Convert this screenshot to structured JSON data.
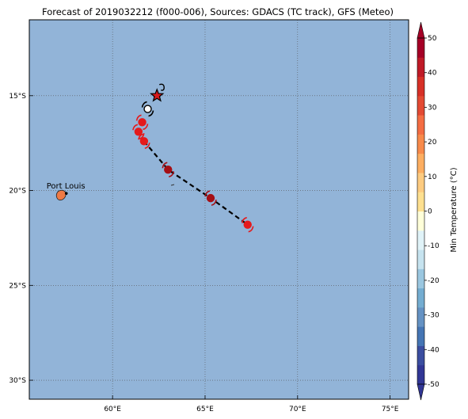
{
  "title": "Forecast of 2019032212 (f000-006), Sources: GDACS (TC track), GFS (Meteo)",
  "map": {
    "ocean_color": "#92b4d8",
    "lon_range": [
      55.5,
      76
    ],
    "lat_range": [
      -31,
      -11
    ],
    "grid": true,
    "lon_ticks": [
      {
        "value": 60,
        "label": "60°E"
      },
      {
        "value": 65,
        "label": "65°E"
      },
      {
        "value": 70,
        "label": "70°E"
      },
      {
        "value": 75,
        "label": "75°E"
      }
    ],
    "lat_ticks": [
      {
        "value": -15,
        "label": "15°S"
      },
      {
        "value": -20,
        "label": "20°S"
      },
      {
        "value": -25,
        "label": "25°S"
      },
      {
        "value": -30,
        "label": "30°S"
      }
    ]
  },
  "city": {
    "name": "Port Louis",
    "lon": 57.5,
    "lat": -20.15
  },
  "track": {
    "line_color": "#000000",
    "points": [
      {
        "lon": 62.4,
        "lat": -15.0,
        "kind": "current"
      },
      {
        "lon": 61.9,
        "lat": -15.7,
        "kind": "past"
      },
      {
        "lon": 61.6,
        "lat": -16.4,
        "kind": "past",
        "color": "#e41a1c"
      },
      {
        "lon": 61.4,
        "lat": -16.9,
        "kind": "past",
        "color": "#e41a1c"
      },
      {
        "lon": 61.7,
        "lat": -17.4,
        "kind": "past",
        "color": "#e41a1c"
      },
      {
        "lon": 63.0,
        "lat": -18.9,
        "kind": "forecast",
        "color": "#a50f15"
      },
      {
        "lon": 65.3,
        "lat": -20.4,
        "kind": "forecast",
        "color": "#a50f15"
      },
      {
        "lon": 67.3,
        "lat": -21.8,
        "kind": "forecast",
        "color": "#e41a1c"
      }
    ]
  },
  "colorbar": {
    "label": "Min Temperature (°C)",
    "range": [
      -50,
      50
    ],
    "ticks": [
      50,
      40,
      30,
      20,
      10,
      0,
      -10,
      -20,
      -30,
      -40,
      -50
    ],
    "colors": [
      "#313695",
      "#3b4ea0",
      "#4575b4",
      "#6592c3",
      "#74add1",
      "#9bc7e0",
      "#c6e3ef",
      "#e0f3f8",
      "#ffffd9",
      "#fee090",
      "#fdcb80",
      "#fdae61",
      "#f88a4b",
      "#f46d43",
      "#e34a33",
      "#d73027",
      "#bf1a27",
      "#a50026"
    ]
  }
}
